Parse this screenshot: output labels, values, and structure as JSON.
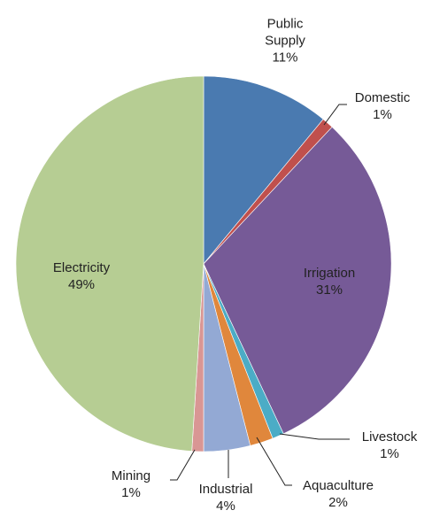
{
  "chart_data": {
    "type": "pie",
    "categories": [
      "Public Supply",
      "Domestic",
      "Irrigation",
      "Livestock",
      "Aquaculture",
      "Industrial",
      "Mining",
      "Electricity"
    ],
    "values": [
      11,
      1,
      31,
      1,
      2,
      4,
      1,
      49
    ],
    "value_labels": [
      "11%",
      "1%",
      "31%",
      "1%",
      "2%",
      "4%",
      "1%",
      "49%"
    ],
    "colors": [
      "#4a7ab0",
      "#c0504d",
      "#765a97",
      "#4bacc6",
      "#e0873c",
      "#93a9d4",
      "#d99694",
      "#b6cd93"
    ]
  }
}
